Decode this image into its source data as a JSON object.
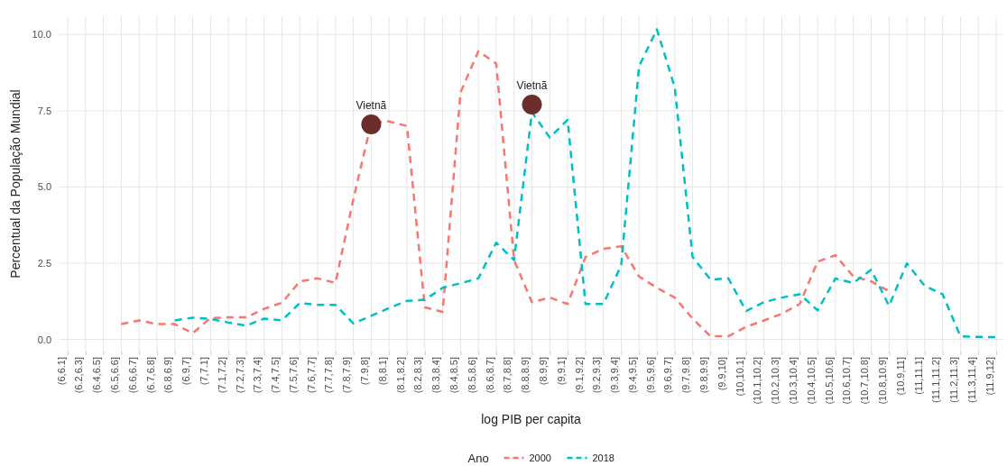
{
  "chart_data": {
    "type": "line",
    "xlabel": "log PIB per capita",
    "ylabel": "Percentual da População Mundial",
    "legend_title": "Ano",
    "categories": [
      "(6,6.1]",
      "(6.2,6.3]",
      "(6.4,6.5]",
      "(6.5,6.6]",
      "(6.6,6.7]",
      "(6.7,6.8]",
      "(6.8,6.9]",
      "(6.9,7]",
      "(7,7.1]",
      "(7.1,7.2]",
      "(7.2,7.3]",
      "(7.3,7.4]",
      "(7.4,7.5]",
      "(7.5,7.6]",
      "(7.6,7.7]",
      "(7.7,7.8]",
      "(7.8,7.9]",
      "(7.9,8]",
      "(8,8.1]",
      "(8.1,8.2]",
      "(8.2,8.3]",
      "(8.3,8.4]",
      "(8.4,8.5]",
      "(8.5,8.6]",
      "(8.6,8.7]",
      "(8.7,8.8]",
      "(8.8,8.9]",
      "(8.9,9]",
      "(9,9.1]",
      "(9.1,9.2]",
      "(9.2,9.3]",
      "(9.3,9.4]",
      "(9.4,9.5]",
      "(9.5,9.6]",
      "(9.6,9.7]",
      "(9.7,9.8]",
      "(9.8,9.9]",
      "(9.9,10]",
      "(10,10.1]",
      "(10.1,10.2]",
      "(10.2,10.3]",
      "(10.3,10.4]",
      "(10.4,10.5]",
      "(10.5,10.6]",
      "(10.6,10.7]",
      "(10.7,10.8]",
      "(10.8,10.9]",
      "(10.9,11]",
      "(11,11.1]",
      "(11.1,11.2]",
      "(11.2,11.3]",
      "(11.3,11.4]",
      "(11.9,12]"
    ],
    "series": [
      {
        "name": "2000",
        "color": "#f8766d",
        "values": [
          null,
          null,
          null,
          0.5,
          0.62,
          0.5,
          0.5,
          0.2,
          0.7,
          0.72,
          0.72,
          1.0,
          1.2,
          1.9,
          2.0,
          1.85,
          4.6,
          7.1,
          7.15,
          7.0,
          1.05,
          0.9,
          8.1,
          9.45,
          9.05,
          2.6,
          1.22,
          1.37,
          1.16,
          2.7,
          2.97,
          3.05,
          2.06,
          1.69,
          1.37,
          0.68,
          0.1,
          0.1,
          0.41,
          0.62,
          0.84,
          1.16,
          2.55,
          2.76,
          2.06,
          1.9,
          1.58,
          null,
          null,
          null,
          null,
          null,
          null
        ]
      },
      {
        "name": "2018",
        "color": "#00bfc4",
        "values": [
          null,
          null,
          null,
          null,
          null,
          null,
          0.62,
          0.71,
          0.67,
          0.55,
          0.45,
          0.68,
          0.62,
          1.19,
          1.13,
          1.13,
          0.52,
          0.77,
          1.03,
          1.26,
          1.3,
          1.69,
          1.84,
          2.0,
          3.17,
          2.6,
          7.45,
          6.62,
          7.2,
          1.16,
          1.16,
          2.43,
          8.96,
          10.17,
          8.26,
          2.7,
          1.96,
          2.0,
          0.93,
          1.22,
          1.37,
          1.48,
          0.95,
          2.0,
          1.85,
          2.28,
          1.1,
          2.49,
          1.75,
          1.48,
          0.1,
          0.08,
          0.07
        ]
      },
      {
        "type": "scatter",
        "color": "#6b2e2a",
        "x": [
          "(7.9,8]",
          "(8.8,8.9]"
        ],
        "values": [
          7.05,
          7.7
        ]
      }
    ],
    "annotations": [
      {
        "text": "Vietnã",
        "x": "(7.9,8]",
        "y": 7.05
      },
      {
        "text": "Vietnã",
        "x": "(8.8,8.9]",
        "y": 7.7
      }
    ],
    "ylim": [
      -0.4,
      10.6
    ],
    "yticks": [
      {
        "value": 0,
        "label": "0.0"
      },
      {
        "value": 2.5,
        "label": "2.5"
      },
      {
        "value": 5,
        "label": "5.0"
      },
      {
        "value": 7.5,
        "label": "7.5"
      },
      {
        "value": 10,
        "label": "10.0"
      }
    ],
    "grid": true,
    "legend": "bottom",
    "line_style": "dashed"
  }
}
